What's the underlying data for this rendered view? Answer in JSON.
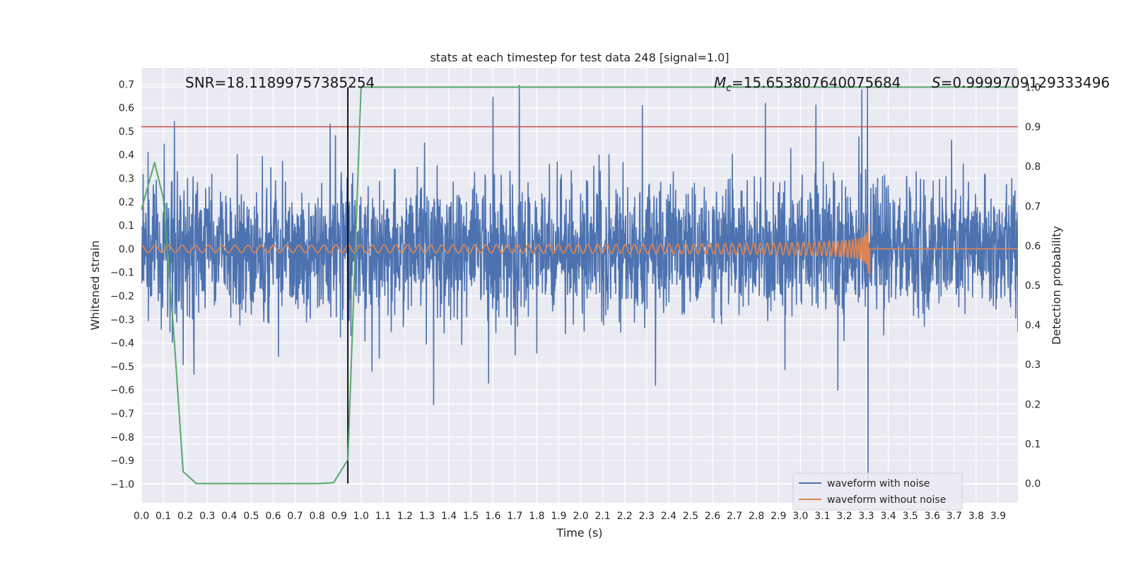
{
  "chart_data": {
    "type": "line",
    "title": "stats at each timestep for test data 248 [signal=1.0]",
    "xlabel": "Time (s)",
    "ylabel": "Whitened strain",
    "y2label": "Detection probability",
    "xlim": [
      0.0,
      3.99
    ],
    "ylim": [
      -1.08,
      0.77
    ],
    "y2lim": [
      -0.0488,
      1.0488
    ],
    "xticks": [
      0.0,
      0.1,
      0.2,
      0.3,
      0.4,
      0.5,
      0.6,
      0.7,
      0.8,
      0.9,
      1.0,
      1.1,
      1.2,
      1.3,
      1.4,
      1.5,
      1.6,
      1.7,
      1.8,
      1.9,
      2.0,
      2.1,
      2.2,
      2.3,
      2.4,
      2.5,
      2.6,
      2.7,
      2.8,
      2.9,
      3.0,
      3.1,
      3.2,
      3.3,
      3.4,
      3.5,
      3.6,
      3.7,
      3.8,
      3.9
    ],
    "xtick_labels": [
      "0.0",
      "0.1",
      "0.2",
      "0.3",
      "0.4",
      "0.5",
      "0.6",
      "0.7",
      "0.8",
      "0.9",
      "1.0",
      "1.1",
      "1.2",
      "1.3",
      "1.4",
      "1.5",
      "1.6",
      "1.7",
      "1.8",
      "1.9",
      "2.0",
      "2.1",
      "2.2",
      "2.3",
      "2.4",
      "2.5",
      "2.6",
      "2.7",
      "2.8",
      "2.9",
      "3.0",
      "3.1",
      "3.2",
      "3.3",
      "3.4",
      "3.5",
      "3.6",
      "3.7",
      "3.8",
      "3.9"
    ],
    "yticks": [
      0.7,
      0.6,
      0.5,
      0.4,
      0.3,
      0.2,
      0.1,
      0.0,
      -0.1,
      -0.2,
      -0.3,
      -0.4,
      -0.5,
      -0.6,
      -0.7,
      -0.8,
      -0.9,
      -1.0
    ],
    "ytick_labels": [
      "0.7",
      "0.6",
      "0.5",
      "0.4",
      "0.3",
      "0.2",
      "0.1",
      "0.0",
      "−0.1",
      "−0.2",
      "−0.3",
      "−0.4",
      "−0.5",
      "−0.6",
      "−0.7",
      "−0.8",
      "−0.9",
      "−1.0"
    ],
    "y2ticks": [
      0.0,
      0.1,
      0.2,
      0.3,
      0.4,
      0.5,
      0.6,
      0.7,
      0.8,
      0.9,
      1.0
    ],
    "y2tick_labels": [
      "0.0",
      "0.1",
      "0.2",
      "0.3",
      "0.4",
      "0.5",
      "0.6",
      "0.7",
      "0.8",
      "0.9",
      "1.0"
    ],
    "grid": true,
    "legend_position": "lower-right",
    "annotations": {
      "snr": "SNR=18.11899757385254",
      "mc_symbol": "M",
      "mc_subscript": "c",
      "mc_value": "=15.653807640075684",
      "s_symbol": "S",
      "s_value": "=0.9999709129333496"
    },
    "threshold_line": {
      "axis": "right",
      "value": 0.9,
      "color": "#c44e52"
    },
    "marker_line": {
      "x": 0.94,
      "color": "#000000"
    },
    "series": [
      {
        "name": "waveform with noise",
        "axis": "left",
        "color": "#4c72b0",
        "kind": "noise",
        "baseline_std": 0.14,
        "notable_peaks": [
          {
            "x": 0.03,
            "y": 0.42
          },
          {
            "x": 0.13,
            "y": -0.36
          },
          {
            "x": 0.15,
            "y": 0.55
          },
          {
            "x": 0.19,
            "y": -0.5
          },
          {
            "x": 0.24,
            "y": -0.54
          },
          {
            "x": 0.86,
            "y": 0.54
          },
          {
            "x": 0.92,
            "y": 0.2
          },
          {
            "x": 1.05,
            "y": -0.53
          },
          {
            "x": 1.6,
            "y": 0.65
          },
          {
            "x": 1.72,
            "y": 0.69
          },
          {
            "x": 1.58,
            "y": -0.57
          },
          {
            "x": 1.33,
            "y": -0.66
          },
          {
            "x": 2.28,
            "y": 0.6
          },
          {
            "x": 2.34,
            "y": -0.57
          },
          {
            "x": 2.84,
            "y": 0.62
          },
          {
            "x": 2.93,
            "y": -0.52
          },
          {
            "x": 3.07,
            "y": 0.62
          },
          {
            "x": 3.17,
            "y": -0.62
          },
          {
            "x": 3.28,
            "y": 0.67
          },
          {
            "x": 3.305,
            "y": 0.68
          },
          {
            "x": 3.308,
            "y": -1.0
          }
        ]
      },
      {
        "name": "waveform without noise",
        "axis": "left",
        "color": "#dd8452",
        "kind": "chirp",
        "merger_time": 3.31,
        "peak_amplitude": 0.5,
        "start_amplitude": 0.015,
        "start_frequency_hz": 16
      },
      {
        "name": "Detection probability",
        "axis": "right",
        "color": "#55a868",
        "kind": "line",
        "x": [
          0.0,
          0.06,
          0.1,
          0.15,
          0.19,
          0.25,
          0.31,
          0.38,
          0.44,
          0.5,
          0.56,
          0.62,
          0.69,
          0.75,
          0.81,
          0.875,
          0.94,
          1.0,
          1.06,
          1.2,
          1.5,
          2.0,
          2.5,
          3.0,
          3.5,
          3.99
        ],
        "y": [
          0.69,
          0.81,
          0.72,
          0.36,
          0.03,
          0.0,
          0.0,
          0.0,
          0.0,
          0.0,
          0.0,
          0.0,
          0.0,
          0.0,
          0.0,
          0.002,
          0.06,
          1.0,
          1.0,
          1.0,
          1.0,
          1.0,
          1.0,
          1.0,
          1.0,
          1.0
        ]
      }
    ]
  }
}
